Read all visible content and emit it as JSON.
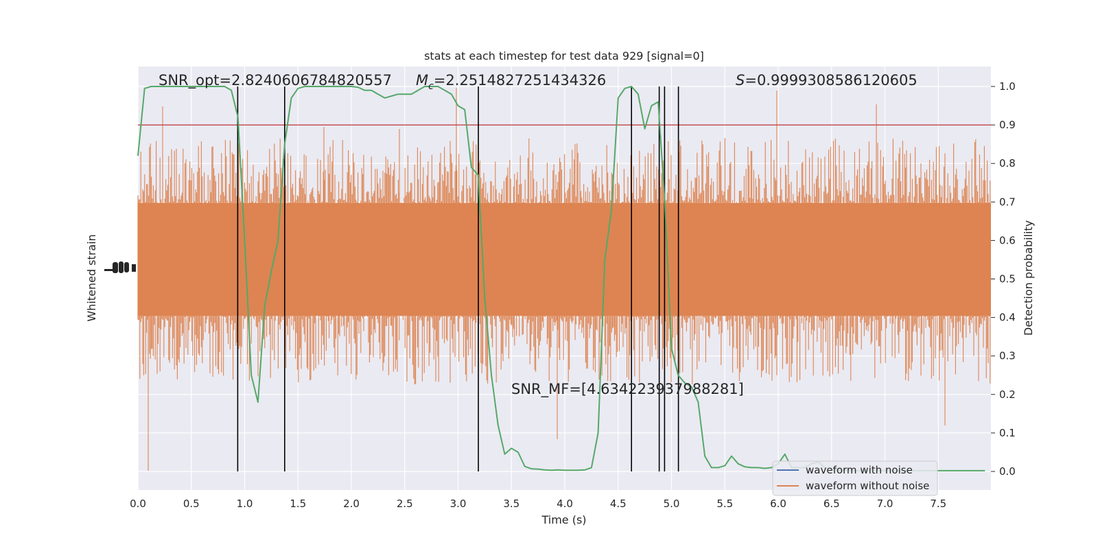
{
  "chart_data": {
    "type": "line",
    "title": "stats at each timestep for test data 929 [signal=0]",
    "xlabel": "Time (s)",
    "ylabel_left": "Whitened strain",
    "ylabel_right": "Detection probability",
    "xlim": [
      0,
      8
    ],
    "ylim_right": [
      -0.048,
      1.05
    ],
    "grid": true,
    "legend_position": "lower-right",
    "x_ticks": [
      "0.0",
      "0.5",
      "1.0",
      "1.5",
      "2.0",
      "2.5",
      "3.0",
      "3.5",
      "4.0",
      "4.5",
      "5.0",
      "5.5",
      "6.0",
      "6.5",
      "7.0",
      "7.5"
    ],
    "y_ticks_right": [
      "0.0",
      "0.1",
      "0.2",
      "0.3",
      "0.4",
      "0.5",
      "0.6",
      "0.7",
      "0.8",
      "0.9",
      "1.0"
    ],
    "annotations": {
      "snr_opt": "SNR_opt=2.8240606784820557",
      "mc_symbol": "M",
      "mc_sub": "c",
      "mc_value": "=2.2514827251434326",
      "s_symbol": "S",
      "s_value": "=0.9999308586120605",
      "snr_mf": "SNR_MF=[4.634223937988281]"
    },
    "threshold": {
      "y": 0.9,
      "color": "#c44e52"
    },
    "detection_crossings": [
      0.935,
      1.375,
      3.19,
      4.625,
      4.885,
      4.935,
      5.065
    ],
    "series": [
      {
        "name": "waveform with noise",
        "color": "#4c72b0",
        "values": []
      },
      {
        "name": "waveform without noise",
        "color": "#dd8452"
      },
      {
        "color": "#55a868",
        "x": [
          0.0,
          0.0625,
          0.125,
          0.1875,
          0.25,
          0.3125,
          0.375,
          0.4375,
          0.5,
          0.5625,
          0.625,
          0.6875,
          0.75,
          0.8125,
          0.875,
          0.9375,
          1.0,
          1.0625,
          1.125,
          1.1875,
          1.25,
          1.3125,
          1.375,
          1.4375,
          1.5,
          1.5625,
          1.625,
          1.6875,
          1.75,
          1.8125,
          1.875,
          1.9375,
          2.0,
          2.0625,
          2.125,
          2.1875,
          2.25,
          2.3125,
          2.375,
          2.4375,
          2.5,
          2.5625,
          2.625,
          2.6875,
          2.75,
          2.8125,
          2.875,
          2.9375,
          3.0,
          3.0625,
          3.125,
          3.1875,
          3.25,
          3.3125,
          3.375,
          3.4375,
          3.5,
          3.5625,
          3.625,
          3.6875,
          3.75,
          3.8125,
          3.875,
          3.9375,
          4.0,
          4.0625,
          4.125,
          4.1875,
          4.25,
          4.3125,
          4.375,
          4.4375,
          4.5,
          4.5625,
          4.625,
          4.6875,
          4.75,
          4.8125,
          4.875,
          4.9375,
          5.0,
          5.0625,
          5.125,
          5.1875,
          5.25,
          5.3125,
          5.375,
          5.4375,
          5.5,
          5.5625,
          5.625,
          5.6875,
          5.75,
          5.8125,
          5.875,
          5.9375,
          6.0,
          6.0625,
          6.125,
          6.1875,
          6.25,
          6.3125,
          6.375,
          6.4375,
          6.5,
          6.5625,
          6.625,
          6.6875,
          6.75,
          6.8125,
          6.875,
          6.9375,
          7.0,
          7.0625,
          7.125,
          7.1875,
          7.25,
          7.3125,
          7.375,
          7.4375,
          7.5,
          7.5625,
          7.625,
          7.6875,
          7.75,
          7.8125,
          7.875,
          7.9375
        ],
        "y": [
          0.82,
          0.995,
          1.0,
          1.0,
          1.0,
          1.0,
          1.0,
          1.0,
          1.0,
          1.0,
          1.0,
          1.0,
          1.0,
          1.0,
          0.99,
          0.92,
          0.6,
          0.25,
          0.18,
          0.43,
          0.52,
          0.6,
          0.85,
          0.97,
          0.995,
          1.0,
          1.0,
          1.0,
          1.0,
          1.0,
          1.0,
          1.0,
          1.0,
          0.998,
          0.99,
          0.99,
          0.98,
          0.97,
          0.975,
          0.98,
          0.98,
          0.98,
          0.99,
          1.0,
          1.0,
          1.0,
          0.99,
          0.98,
          0.95,
          0.94,
          0.79,
          0.77,
          0.45,
          0.25,
          0.12,
          0.045,
          0.06,
          0.05,
          0.013,
          0.007,
          0.006,
          0.004,
          0.003,
          0.004,
          0.003,
          0.003,
          0.003,
          0.004,
          0.01,
          0.1,
          0.55,
          0.68,
          0.97,
          0.995,
          1.0,
          0.98,
          0.89,
          0.95,
          0.96,
          0.7,
          0.32,
          0.25,
          0.23,
          0.22,
          0.18,
          0.04,
          0.01,
          0.01,
          0.015,
          0.04,
          0.02,
          0.012,
          0.01,
          0.01,
          0.008,
          0.01,
          0.02,
          0.045,
          0.01,
          0.01,
          0.01,
          0.02,
          0.025,
          0.01,
          0.005,
          0.003,
          0.003,
          0.002,
          0.002,
          0.002,
          0.003,
          0.002,
          0.002,
          0.002,
          0.002,
          0.002,
          0.002,
          0.002,
          0.002,
          0.002,
          0.002,
          0.002,
          0.002,
          0.002,
          0.002,
          0.002,
          0.002,
          0.002
        ]
      }
    ]
  }
}
